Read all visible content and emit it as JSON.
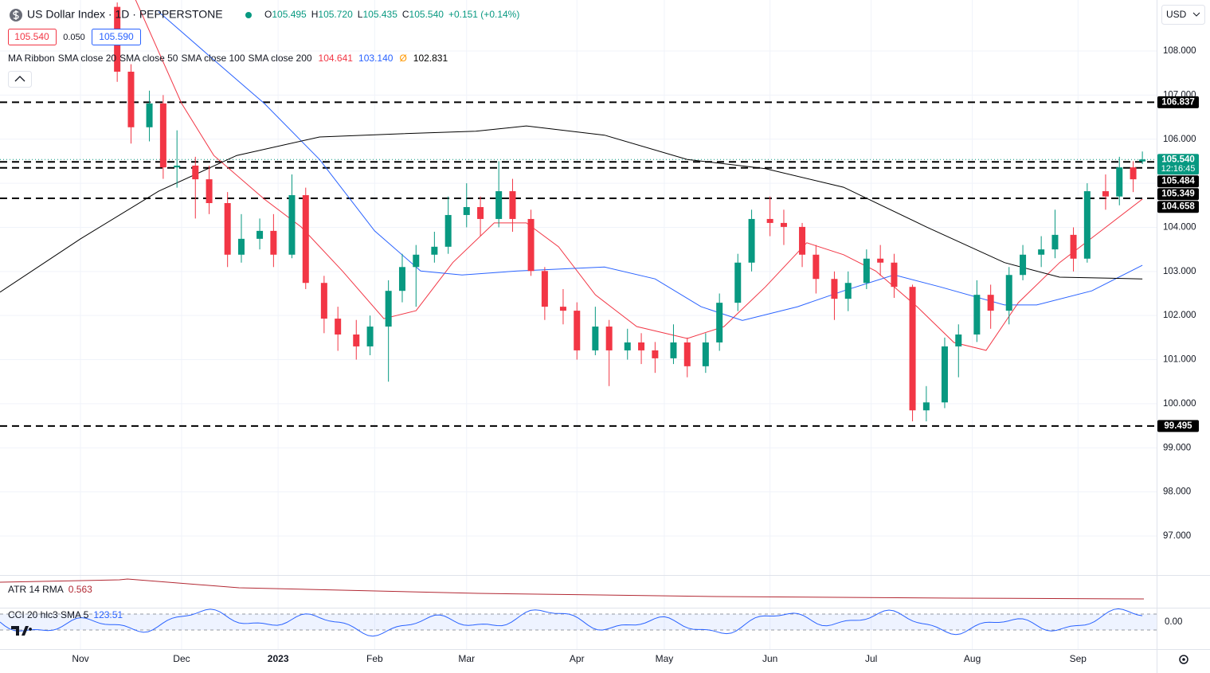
{
  "chart_data": {
    "type": "candlestick",
    "title": "US Dollar Index · 1D · PEPPERSTONE",
    "currency": "USD",
    "ohlc_header": [
      {
        "key": "O",
        "value": "105.495"
      },
      {
        "key": "H",
        "value": "105.720"
      },
      {
        "key": "L",
        "value": "105.435"
      },
      {
        "key": "C",
        "value": "105.540"
      }
    ],
    "change": "+0.151 (+0.14%)",
    "bid": "105.540",
    "spread": "0.050",
    "ask": "105.590",
    "ma_ribbon": "MA Ribbon",
    "moving_averages": [
      {
        "name": "SMA close 20",
        "color": "#f23645",
        "last_label": "104.641",
        "x": [
          12,
          22,
          29,
          40,
          48,
          57,
          66,
          73,
          81,
          90,
          97,
          104,
          112,
          121,
          132,
          140,
          149,
          158,
          166,
          173,
          182,
          190,
          197,
          204,
          213,
          222,
          231
        ],
        "values": [
          109.16,
          106.81,
          105.63,
          104.64,
          104.01,
          103.01,
          101.93,
          102.11,
          103.2,
          104.1,
          104.1,
          103.56,
          102.47,
          101.75,
          101.48,
          101.75,
          102.65,
          103.65,
          103.38,
          103.01,
          102.2,
          101.39,
          101.21,
          102.29,
          103.2,
          103.92,
          104.641
        ]
      },
      {
        "name": "SMA close 50",
        "color": "#2962ff",
        "last_label": "103.140",
        "x": [
          17,
          28,
          40,
          52,
          64,
          74,
          83,
          95,
          114,
          125,
          135,
          144,
          156,
          166,
          177,
          187,
          201,
          208,
          220,
          231
        ],
        "values": [
          108.89,
          107.89,
          106.81,
          105.54,
          103.92,
          103.01,
          102.92,
          103.01,
          103.1,
          102.83,
          102.2,
          101.89,
          102.2,
          102.56,
          102.92,
          102.65,
          102.24,
          102.24,
          102.56,
          103.14
        ]
      },
      {
        "name": "SMA close 100",
        "color": "#ff9800",
        "last_label": "Ø",
        "x": [],
        "values": []
      },
      {
        "name": "SMA close 200",
        "color": "#000000",
        "last_label": "102.831",
        "x": [
          -17.5,
          0,
          17,
          34,
          52,
          69,
          86,
          97,
          114,
          132,
          149,
          166,
          184,
          201,
          213,
          231
        ],
        "values": [
          102.53,
          103.74,
          104.82,
          105.63,
          106.05,
          106.12,
          106.18,
          106.3,
          106.09,
          105.54,
          105.33,
          104.91,
          104.01,
          103.2,
          102.87,
          102.831
        ]
      }
    ],
    "x": [
      8,
      11,
      15,
      18,
      21,
      25,
      28,
      32,
      35,
      39,
      42,
      46,
      49,
      53,
      56,
      60,
      63,
      67,
      70,
      73,
      77,
      80,
      84,
      87,
      91,
      94,
      98,
      101,
      105,
      108,
      112,
      115,
      119,
      122,
      125,
      129,
      132,
      136,
      139,
      143,
      146,
      150,
      153,
      157,
      160,
      164,
      167,
      171,
      174,
      177,
      181,
      184,
      188,
      191,
      195,
      198,
      202,
      205,
      209,
      212,
      216,
      219,
      223,
      226,
      229,
      231
    ],
    "open": [
      109.0,
      107.53,
      106.27,
      106.81,
      105.36,
      105.4,
      105.09,
      104.55,
      103.38,
      103.74,
      103.92,
      103.38,
      104.73,
      102.74,
      101.93,
      101.57,
      101.3,
      101.75,
      102.56,
      103.1,
      103.38,
      103.56,
      104.28,
      104.46,
      104.19,
      104.82,
      104.19,
      103.01,
      102.2,
      102.11,
      101.21,
      101.75,
      101.21,
      101.39,
      101.21,
      101.03,
      101.39,
      100.85,
      101.39,
      102.29,
      103.2,
      104.19,
      104.1,
      104.01,
      103.38,
      102.83,
      102.38,
      102.74,
      103.29,
      103.2,
      102.65,
      99.85,
      100.03,
      101.3,
      101.57,
      102.47,
      102.11,
      102.92,
      103.38,
      103.5,
      103.83,
      103.29,
      104.82,
      104.7,
      105.36,
      105.495
    ],
    "high": [
      109.1,
      107.7,
      107.1,
      107.0,
      106.2,
      105.6,
      105.4,
      104.8,
      104.3,
      104.2,
      104.3,
      105.2,
      104.9,
      102.9,
      102.2,
      101.9,
      102.0,
      102.8,
      103.4,
      103.6,
      103.9,
      104.7,
      105.0,
      104.7,
      105.5,
      105.1,
      104.4,
      103.1,
      102.6,
      102.3,
      102.2,
      101.9,
      101.7,
      101.6,
      101.4,
      101.8,
      101.5,
      101.6,
      102.5,
      103.4,
      104.4,
      104.7,
      104.4,
      104.1,
      103.6,
      103.0,
      103.0,
      103.5,
      103.6,
      103.4,
      102.7,
      100.4,
      101.5,
      101.8,
      102.8,
      102.7,
      103.1,
      103.6,
      103.8,
      104.4,
      104.0,
      105.0,
      105.2,
      105.6,
      105.5,
      105.72
    ],
    "low": [
      107.3,
      105.9,
      105.95,
      105.1,
      104.9,
      104.2,
      104.3,
      103.1,
      103.2,
      103.5,
      103.1,
      103.3,
      102.6,
      101.6,
      101.2,
      101.0,
      101.1,
      100.5,
      102.3,
      102.2,
      103.2,
      103.4,
      104.0,
      103.8,
      104.0,
      103.9,
      102.9,
      101.9,
      101.8,
      101.0,
      101.1,
      100.4,
      101.0,
      100.9,
      100.7,
      100.9,
      100.6,
      100.7,
      101.2,
      102.1,
      103.0,
      103.8,
      103.6,
      103.1,
      102.5,
      101.9,
      102.1,
      102.6,
      102.9,
      102.4,
      99.6,
      99.6,
      99.9,
      100.6,
      101.4,
      101.7,
      101.8,
      102.8,
      103.1,
      103.3,
      103.0,
      103.2,
      104.4,
      104.5,
      104.8,
      105.435
    ],
    "close": [
      107.53,
      106.27,
      106.81,
      105.36,
      105.4,
      105.09,
      104.55,
      103.38,
      103.74,
      103.92,
      103.38,
      104.73,
      102.74,
      101.93,
      101.57,
      101.3,
      101.75,
      102.56,
      103.1,
      103.38,
      103.56,
      104.28,
      104.46,
      104.19,
      104.82,
      104.19,
      103.01,
      102.2,
      102.11,
      101.21,
      101.75,
      101.21,
      101.39,
      101.21,
      101.03,
      101.39,
      100.85,
      101.39,
      102.29,
      103.2,
      104.19,
      104.1,
      104.01,
      103.38,
      102.83,
      102.38,
      102.74,
      103.29,
      103.2,
      102.65,
      99.85,
      100.03,
      101.3,
      101.57,
      102.47,
      102.11,
      102.92,
      103.38,
      103.5,
      103.83,
      103.29,
      104.82,
      104.7,
      105.36,
      105.09,
      105.54
    ],
    "color_up": "#089981",
    "color_down": "#f23645",
    "xlim": [
      -17.5,
      234.1
    ],
    "ylim": [
      96.115,
      109.156
    ],
    "xticks": [
      {
        "value": 0,
        "label": "Nov"
      },
      {
        "value": 22,
        "label": "Dec"
      },
      {
        "value": 43,
        "label": "2023"
      },
      {
        "value": 64,
        "label": "Feb"
      },
      {
        "value": 84,
        "label": "Mar"
      },
      {
        "value": 108,
        "label": "Apr"
      },
      {
        "value": 127,
        "label": "May"
      },
      {
        "value": 150,
        "label": "Jun"
      },
      {
        "value": 172,
        "label": "Jul"
      },
      {
        "value": 194,
        "label": "Aug"
      },
      {
        "value": 217,
        "label": "Sep"
      }
    ],
    "yticks": [
      {
        "value": 97,
        "label": "97.000"
      },
      {
        "value": 98,
        "label": "98.000"
      },
      {
        "value": 99,
        "label": "99.000"
      },
      {
        "value": 100,
        "label": "100.000"
      },
      {
        "value": 101,
        "label": "101.000"
      },
      {
        "value": 102,
        "label": "102.000"
      },
      {
        "value": 103,
        "label": "103.000"
      },
      {
        "value": 104,
        "label": "104.000"
      },
      {
        "value": 105,
        "label": "105.000"
      },
      {
        "value": 106,
        "label": "106.000"
      },
      {
        "value": 107,
        "label": "107.000"
      },
      {
        "value": 108,
        "label": "108.000"
      }
    ],
    "grid": true,
    "hlines": [
      106.837,
      105.484,
      105.349,
      104.658,
      99.495
    ],
    "current_price": {
      "value": 105.54,
      "label": "105.540",
      "countdown": "12:16:45",
      "color": "#089981"
    },
    "atr": {
      "name": "ATR 14 RMA",
      "value": 0.563,
      "color": "#b22833"
    },
    "cci": {
      "name": "CCI 20 hlc3 SMA 5",
      "value": 123.51,
      "color": "#2962ff",
      "ticks": [
        {
          "value": 0,
          "label": "0.00"
        }
      ]
    }
  }
}
